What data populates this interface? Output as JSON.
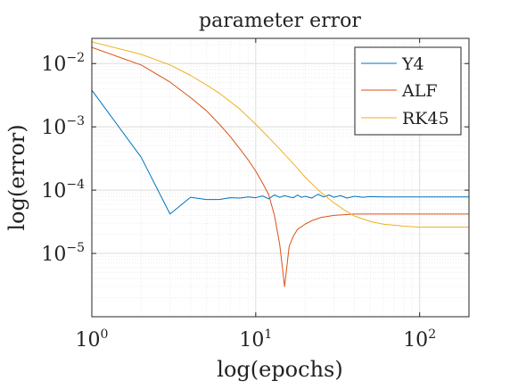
{
  "chart_data": {
    "type": "line",
    "title": "parameter error",
    "xlabel": "log(epochs)",
    "ylabel": "log(error)",
    "xscale": "log",
    "yscale": "log",
    "xlim": [
      1,
      200
    ],
    "ylim": [
      1e-06,
      0.025
    ],
    "grid": true,
    "minor_grid": true,
    "legend_position": "top-right",
    "x_ticks": [
      {
        "value": 1,
        "base": "10",
        "exp": "0"
      },
      {
        "value": 10,
        "base": "10",
        "exp": "1"
      },
      {
        "value": 100,
        "base": "10",
        "exp": "2"
      }
    ],
    "y_ticks": [
      {
        "value": 1e-05,
        "base": "10",
        "exp": "−5"
      },
      {
        "value": 0.0001,
        "base": "10",
        "exp": "−4"
      },
      {
        "value": 0.001,
        "base": "10",
        "exp": "−3"
      },
      {
        "value": 0.01,
        "base": "10",
        "exp": "−2"
      }
    ],
    "series": [
      {
        "name": "Y4",
        "color": "#0072BD",
        "points": [
          [
            1,
            0.0038
          ],
          [
            2,
            0.00033
          ],
          [
            3,
            4.2e-05
          ],
          [
            4,
            7.7e-05
          ],
          [
            5,
            7.1e-05
          ],
          [
            6,
            7.1e-05
          ],
          [
            7,
            7.6e-05
          ],
          [
            8,
            7.5e-05
          ],
          [
            9,
            7.8e-05
          ],
          [
            10,
            7.6e-05
          ],
          [
            11,
            8.1e-05
          ],
          [
            12,
            7.3e-05
          ],
          [
            13,
            8.4e-05
          ],
          [
            14,
            7.7e-05
          ],
          [
            15,
            8.2e-05
          ],
          [
            16,
            7.8e-05
          ],
          [
            17,
            7.6e-05
          ],
          [
            18,
            8.4e-05
          ],
          [
            19,
            7.7e-05
          ],
          [
            20,
            8e-05
          ],
          [
            22,
            7.5e-05
          ],
          [
            24,
            8.6e-05
          ],
          [
            26,
            7.8e-05
          ],
          [
            28,
            8.4e-05
          ],
          [
            30,
            7.7e-05
          ],
          [
            33,
            8.2e-05
          ],
          [
            36,
            7.5e-05
          ],
          [
            40,
            8e-05
          ],
          [
            45,
            7.7e-05
          ],
          [
            50,
            7.9e-05
          ],
          [
            60,
            7.8e-05
          ],
          [
            80,
            7.8e-05
          ],
          [
            100,
            7.8e-05
          ],
          [
            150,
            7.8e-05
          ],
          [
            200,
            7.8e-05
          ]
        ]
      },
      {
        "name": "ALF",
        "color": "#D95319",
        "points": [
          [
            1,
            0.018
          ],
          [
            2,
            0.0095
          ],
          [
            3,
            0.0051
          ],
          [
            4,
            0.0029
          ],
          [
            5,
            0.0018
          ],
          [
            6,
            0.0011
          ],
          [
            7,
            0.0007
          ],
          [
            8,
            0.00045
          ],
          [
            9,
            0.0003
          ],
          [
            10,
            0.0002
          ],
          [
            11,
            0.00013
          ],
          [
            12,
            8.5e-05
          ],
          [
            13,
            4e-05
          ],
          [
            14,
            1.4e-05
          ],
          [
            15,
            3e-06
          ],
          [
            16,
            1.3e-05
          ],
          [
            17,
            1.9e-05
          ],
          [
            18,
            2.4e-05
          ],
          [
            20,
            2.9e-05
          ],
          [
            22,
            3.3e-05
          ],
          [
            25,
            3.7e-05
          ],
          [
            30,
            4e-05
          ],
          [
            35,
            4.1e-05
          ],
          [
            40,
            4.2e-05
          ],
          [
            50,
            4.2e-05
          ],
          [
            70,
            4.2e-05
          ],
          [
            100,
            4.2e-05
          ],
          [
            150,
            4.2e-05
          ],
          [
            200,
            4.2e-05
          ]
        ]
      },
      {
        "name": "RK45",
        "color": "#EDB120",
        "points": [
          [
            1,
            0.022
          ],
          [
            2,
            0.014
          ],
          [
            3,
            0.0095
          ],
          [
            4,
            0.0065
          ],
          [
            5,
            0.0046
          ],
          [
            6,
            0.0034
          ],
          [
            7,
            0.0025
          ],
          [
            8,
            0.0019
          ],
          [
            10,
            0.0011
          ],
          [
            12,
            0.00068
          ],
          [
            15,
            0.00037
          ],
          [
            18,
            0.00022
          ],
          [
            20,
            0.00016
          ],
          [
            25,
            9.2e-05
          ],
          [
            30,
            6.3e-05
          ],
          [
            35,
            4.8e-05
          ],
          [
            40,
            3.9e-05
          ],
          [
            50,
            3.2e-05
          ],
          [
            60,
            2.9e-05
          ],
          [
            70,
            2.8e-05
          ],
          [
            80,
            2.7e-05
          ],
          [
            100,
            2.6e-05
          ],
          [
            150,
            2.6e-05
          ],
          [
            200,
            2.6e-05
          ]
        ]
      }
    ]
  }
}
